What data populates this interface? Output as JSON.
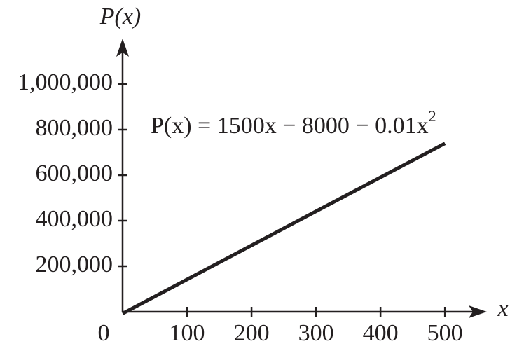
{
  "chart_data": {
    "type": "line",
    "y_label": "P(x)",
    "x_label": "x",
    "annotation": {
      "text": "P(x) = 1500x − 8000 − 0.01x",
      "superscript": "2"
    },
    "x": [
      0,
      100,
      200,
      300,
      400,
      500
    ],
    "series": [
      {
        "name": "P(x)",
        "color": "#231f20",
        "values": [
          -8000,
          141900,
          291600,
          441100,
          590400,
          739500
        ]
      }
    ],
    "xlim": [
      0,
      565
    ],
    "ylim": [
      0,
      1200000
    ],
    "xticks": [
      0,
      100,
      200,
      300,
      400,
      500
    ],
    "yticks": [
      {
        "value": 200000,
        "label": "200,000"
      },
      {
        "value": 400000,
        "label": "400,000"
      },
      {
        "value": 600000,
        "label": "600,000"
      },
      {
        "value": 800000,
        "label": "800,000"
      },
      {
        "value": 1000000,
        "label": "1,000,000"
      }
    ]
  }
}
